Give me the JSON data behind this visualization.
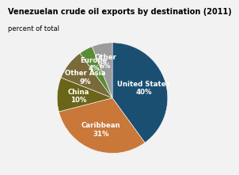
{
  "title": "Venezuelan crude oil exports by destination (2011)",
  "subtitle": "percent of total",
  "slices": [
    {
      "label": "United States\n40%",
      "value": 40,
      "color": "#1b4f72"
    },
    {
      "label": "Caribbean\n31%",
      "value": 31,
      "color": "#c9783a"
    },
    {
      "label": "China\n10%",
      "value": 10,
      "color": "#6b6519"
    },
    {
      "label": "Other Asia\n9%",
      "value": 9,
      "color": "#7a6a3a"
    },
    {
      "label": "Europe\n4%",
      "value": 4,
      "color": "#5a8c38"
    },
    {
      "label": "Other\n6%",
      "value": 6,
      "color": "#9b9b9b"
    }
  ],
  "start_angle": 90,
  "bg_color": "#f2f2f2",
  "title_fontsize": 7.0,
  "subtitle_fontsize": 6.0,
  "label_fontsize": 6.2,
  "label_radii": [
    0.6,
    0.6,
    0.62,
    0.62,
    0.7,
    0.68
  ]
}
